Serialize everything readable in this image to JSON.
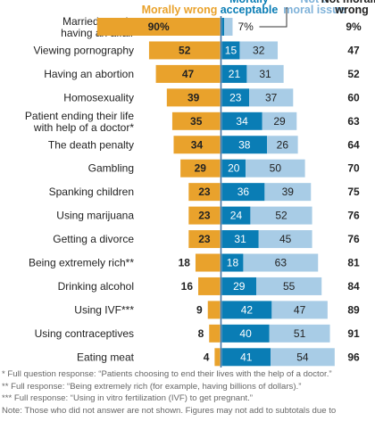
{
  "legend": {
    "morally_wrong": "Morally wrong",
    "morally_acceptable": "Morally acceptable",
    "not_moral_issue": "Not a moral issue",
    "not_morally_wrong": "Not morally wrong"
  },
  "colors": {
    "morally_wrong": "#E9A22C",
    "morally_acceptable": "#0A7DB5",
    "not_moral_issue": "#A8CCE6",
    "axis": "#3b6fa0"
  },
  "chart_data": {
    "type": "bar",
    "orientation": "horizontal",
    "categories": [
      "Married people having an affair",
      "Viewing pornography",
      "Having an abortion",
      "Homosexuality",
      "Patient ending their life with help of a doctor*",
      "The death penalty",
      "Gambling",
      "Spanking children",
      "Using marijuana",
      "Getting a divorce",
      "Being extremely rich**",
      "Drinking alcohol",
      "Using IVF***",
      "Using contraceptives",
      "Eating meat"
    ],
    "series": [
      {
        "name": "Morally wrong",
        "values": [
          90,
          52,
          47,
          39,
          35,
          34,
          29,
          23,
          23,
          23,
          18,
          16,
          9,
          8,
          4
        ]
      },
      {
        "name": "Morally acceptable",
        "values": [
          2,
          15,
          21,
          23,
          34,
          38,
          20,
          36,
          24,
          31,
          18,
          29,
          42,
          40,
          41
        ]
      },
      {
        "name": "Not a moral issue",
        "values": [
          7,
          32,
          31,
          37,
          29,
          26,
          50,
          39,
          52,
          45,
          63,
          55,
          47,
          51,
          54
        ]
      },
      {
        "name": "Not morally wrong",
        "values": [
          9,
          47,
          52,
          60,
          63,
          64,
          70,
          75,
          76,
          76,
          81,
          84,
          89,
          91,
          96
        ]
      }
    ],
    "annotation": "7%",
    "data_labels": {
      "morally_wrong": [
        "90%",
        "52",
        "47",
        "39",
        "35",
        "34",
        "29",
        "23",
        "23",
        "23",
        "18",
        "16",
        "9",
        "8",
        "4"
      ],
      "morally_acceptable": [
        "",
        "15",
        "21",
        "23",
        "34",
        "38",
        "20",
        "36",
        "24",
        "31",
        "18",
        "29",
        "42",
        "40",
        "41"
      ],
      "not_moral_issue": [
        "",
        "32",
        "31",
        "37",
        "29",
        "26",
        "50",
        "39",
        "52",
        "45",
        "63",
        "55",
        "47",
        "51",
        "54"
      ],
      "not_morally_wrong": [
        "9%",
        "47",
        "52",
        "60",
        "63",
        "64",
        "70",
        "75",
        "76",
        "76",
        "81",
        "84",
        "89",
        "91",
        "96"
      ]
    }
  },
  "notes": [
    "* Full question response: “Patients choosing to end their lives with the help of a doctor.”",
    "** Full response: “Being extremely rich (for example, having billions of dollars).”",
    "*** Full response: “Using in vitro fertilization (IVF) to get pregnant.”",
    "Note: Those who did not answer are not shown. Figures may not add to subtotals due to"
  ]
}
